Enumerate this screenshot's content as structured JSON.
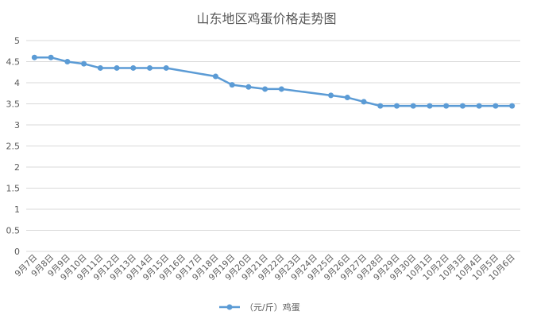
{
  "chart_data": {
    "type": "line",
    "title": "山东地区鸡蛋价格走势图",
    "xlabel": "",
    "ylabel": "",
    "ylim": [
      0,
      5
    ],
    "y_ticks": [
      "0",
      "0.5",
      "1",
      "1.5",
      "2",
      "2.5",
      "3",
      "3.5",
      "4",
      "4.5",
      "5"
    ],
    "grid": true,
    "legend_position": "bottom",
    "colors": {
      "series": "#5b9bd5",
      "grid": "#d9d9d9",
      "text": "#595959"
    },
    "categories": [
      "9月7日",
      "9月8日",
      "9月9日",
      "9月10日",
      "9月11日",
      "9月12日",
      "9月13日",
      "9月14日",
      "9月15日",
      "9月16日",
      "9月17日",
      "9月18日",
      "9月19日",
      "9月20日",
      "9月21日",
      "9月22日",
      "9月23日",
      "9月24日",
      "9月25日",
      "9月26日",
      "9月27日",
      "9月28日",
      "9月29日",
      "9月30日",
      "10月1日",
      "10月2日",
      "10月3日",
      "10月4日",
      "10月5日",
      "10月6日"
    ],
    "series": [
      {
        "name": "（元/斤）鸡蛋",
        "values": [
          4.6,
          4.6,
          4.5,
          4.45,
          4.35,
          4.35,
          4.35,
          4.35,
          4.35,
          null,
          null,
          4.15,
          3.95,
          3.9,
          3.85,
          3.85,
          null,
          null,
          3.7,
          3.65,
          3.55,
          3.45,
          3.45,
          3.45,
          3.45,
          3.45,
          3.45,
          3.45,
          3.45,
          3.45
        ]
      }
    ]
  }
}
